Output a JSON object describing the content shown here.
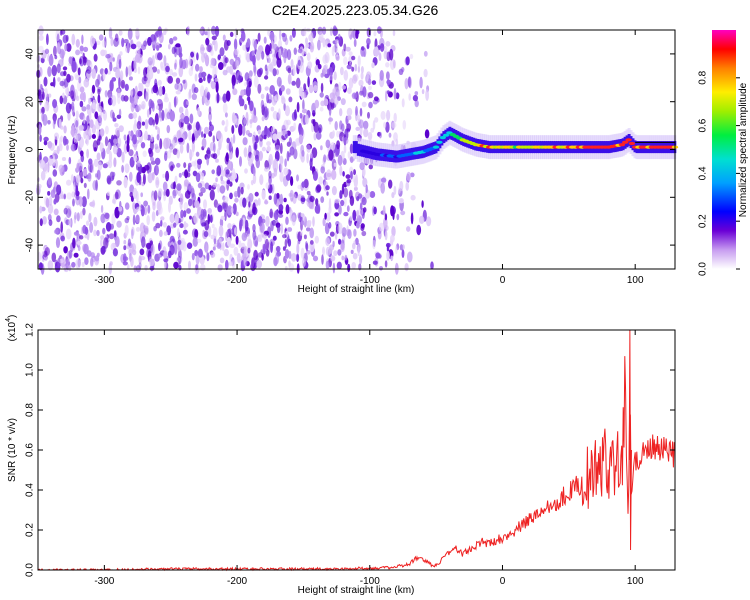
{
  "title": "C2E4.2025.223.05.34.G26",
  "chart_data": [
    {
      "type": "heatmap",
      "xlabel": "Height of straight line (km)",
      "ylabel": "Frequency (Hz)",
      "xlim": [
        -350,
        130
      ],
      "ylim": [
        -50,
        50
      ],
      "x_ticks": [
        -300,
        -200,
        -100,
        0,
        100
      ],
      "y_ticks": [
        -40,
        -20,
        0,
        20,
        40
      ],
      "colorbar": {
        "label": "Normalized spectral amplitude",
        "range": [
          0,
          1
        ],
        "ticks": [
          "0.0",
          "0.2",
          "0.4",
          "0.6",
          "0.8"
        ]
      },
      "description": "Noise (purple) for heights < -60 km; coherent signal near 0 Hz from about -110 km to 130 km",
      "signal_trace": {
        "x": [
          -110,
          -95,
          -80,
          -70,
          -60,
          -50,
          -45,
          -40,
          -30,
          -20,
          -10,
          0,
          20,
          40,
          60,
          80,
          90,
          95,
          100,
          110,
          130
        ],
        "frequency_hz": [
          0,
          -2,
          -3,
          -2,
          -1,
          1,
          5,
          7,
          4,
          2,
          1,
          1,
          1,
          1,
          1,
          1,
          2,
          4,
          1,
          1,
          1
        ],
        "amplitude": [
          0.25,
          0.3,
          0.4,
          0.45,
          0.5,
          0.55,
          0.6,
          0.6,
          0.75,
          0.8,
          0.85,
          0.8,
          0.75,
          0.85,
          0.9,
          0.95,
          0.85,
          0.9,
          0.95,
          0.9,
          0.9
        ]
      },
      "colors": {
        "noise": "#7a1fd6",
        "signal_low": "#0000ff",
        "signal_mid": "#00e0e0",
        "signal_high": "#ff2020"
      }
    },
    {
      "type": "line",
      "xlabel": "Height of straight line (km)",
      "ylabel": "SNR (10 * v/v)",
      "y_multiplier": "(x10",
      "y_multiplier_exp": "4",
      "xlim": [
        -350,
        130
      ],
      "ylim": [
        0,
        1.2
      ],
      "x_ticks": [
        -300,
        -200,
        -100,
        0,
        100
      ],
      "y_ticks": [
        "0.0",
        "0.2",
        "0.4",
        "0.6",
        "0.8",
        "1.0",
        "1.2"
      ],
      "series": [
        {
          "color": "#ee2222",
          "x": [
            -350,
            -300,
            -250,
            -200,
            -150,
            -120,
            -100,
            -90,
            -80,
            -70,
            -65,
            -60,
            -55,
            -50,
            -45,
            -40,
            -35,
            -30,
            -25,
            -20,
            -15,
            -10,
            -5,
            0,
            10,
            20,
            30,
            40,
            50,
            60,
            70,
            80,
            85,
            90,
            93,
            95,
            96,
            97,
            100,
            105,
            110,
            120,
            130
          ],
          "y": [
            0.0,
            0.0,
            0.005,
            0.005,
            0.005,
            0.005,
            0.01,
            0.01,
            0.015,
            0.03,
            0.06,
            0.05,
            0.03,
            0.02,
            0.06,
            0.09,
            0.11,
            0.08,
            0.1,
            0.12,
            0.14,
            0.13,
            0.15,
            0.16,
            0.2,
            0.25,
            0.3,
            0.34,
            0.39,
            0.44,
            0.49,
            0.54,
            0.58,
            0.6,
            0.9,
            0.2,
            1.2,
            0.35,
            0.56,
            0.58,
            0.6,
            0.6,
            0.57
          ]
        }
      ]
    }
  ]
}
